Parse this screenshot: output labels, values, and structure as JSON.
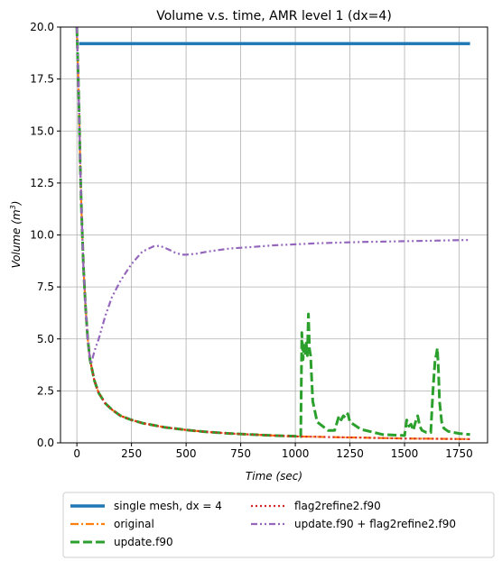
{
  "chart_data": {
    "type": "line",
    "title": "Volume v.s. time, AMR level 1 (dx=4)",
    "xlabel_main": "Time",
    "xlabel_unit": "(sec)",
    "ylabel_main": "Volume",
    "ylabel_unit_prefix": "(m",
    "ylabel_unit_exp": "3",
    "ylabel_unit_suffix": ")",
    "xlim": [
      -75,
      1880
    ],
    "ylim": [
      0,
      20
    ],
    "xticks": [
      0,
      250,
      500,
      750,
      1000,
      1250,
      1500,
      1750
    ],
    "xtick_labels": [
      "0",
      "250",
      "500",
      "750",
      "1000",
      "1250",
      "1500",
      "1750"
    ],
    "yticks": [
      0,
      2.5,
      5,
      7.5,
      10,
      12.5,
      15,
      17.5,
      20
    ],
    "ytick_labels": [
      "0.0",
      "2.5",
      "5.0",
      "7.5",
      "10.0",
      "12.5",
      "15.0",
      "17.5",
      "20.0"
    ],
    "grid": true,
    "legend_position": "below plot, 2 columns",
    "series": [
      {
        "name": "single mesh, dx = 4",
        "color": "#1f77b4",
        "style": "solid",
        "x": [
          10,
          1800
        ],
        "y": [
          19.2,
          19.2
        ]
      },
      {
        "name": "original",
        "color": "#ff7f0e",
        "style": "dashdot",
        "x": [
          0,
          5,
          10,
          15,
          20,
          30,
          40,
          50,
          60,
          80,
          100,
          130,
          160,
          200,
          250,
          300,
          400,
          500,
          600,
          700,
          800,
          900,
          1000,
          1100,
          1200,
          1300,
          1400,
          1500,
          1600,
          1700,
          1800
        ],
        "y": [
          20,
          18,
          16,
          13.5,
          11.5,
          8.5,
          6.5,
          5.0,
          4.0,
          3.0,
          2.4,
          1.9,
          1.6,
          1.3,
          1.1,
          0.95,
          0.75,
          0.62,
          0.52,
          0.45,
          0.4,
          0.35,
          0.31,
          0.29,
          0.27,
          0.25,
          0.23,
          0.21,
          0.2,
          0.19,
          0.18
        ]
      },
      {
        "name": "update.f90",
        "color": "#2ca02c",
        "style": "dashed",
        "x": [
          0,
          5,
          10,
          15,
          20,
          30,
          40,
          50,
          60,
          80,
          100,
          130,
          160,
          200,
          250,
          300,
          400,
          500,
          600,
          700,
          800,
          900,
          1000,
          1025,
          1030,
          1035,
          1040,
          1045,
          1050,
          1055,
          1060,
          1065,
          1070,
          1080,
          1100,
          1150,
          1180,
          1200,
          1210,
          1220,
          1230,
          1240,
          1250,
          1300,
          1400,
          1500,
          1510,
          1520,
          1530,
          1540,
          1550,
          1560,
          1570,
          1580,
          1600,
          1620,
          1630,
          1640,
          1645,
          1650,
          1655,
          1660,
          1670,
          1680,
          1700,
          1750,
          1800
        ],
        "y": [
          20,
          18,
          16,
          13.5,
          11.5,
          8.5,
          6.5,
          5.0,
          4.0,
          3.0,
          2.4,
          1.9,
          1.6,
          1.3,
          1.1,
          0.95,
          0.75,
          0.62,
          0.52,
          0.45,
          0.4,
          0.35,
          0.32,
          0.3,
          5.3,
          4.0,
          4.7,
          4.3,
          4.8,
          4.2,
          6.2,
          4.5,
          4.2,
          2.0,
          1.0,
          0.6,
          0.6,
          1.3,
          1.1,
          1.3,
          1.2,
          1.4,
          1.0,
          0.65,
          0.4,
          0.35,
          1.1,
          0.8,
          0.9,
          0.6,
          1.0,
          1.3,
          0.8,
          0.6,
          0.5,
          0.5,
          2.5,
          4.0,
          4.2,
          4.55,
          3.5,
          2.0,
          1.0,
          0.7,
          0.55,
          0.45,
          0.4
        ]
      },
      {
        "name": "flag2refine2.f90",
        "color": "#d62728",
        "style": "dotted",
        "x": [
          0,
          5,
          10,
          15,
          20,
          30,
          40,
          50,
          60,
          80,
          100,
          130,
          160,
          200,
          250,
          300,
          400,
          500,
          600,
          700,
          800,
          900,
          1000,
          1100,
          1200,
          1300,
          1400,
          1500,
          1600,
          1700,
          1800
        ],
        "y": [
          20,
          18,
          16,
          13.5,
          11.5,
          8.5,
          6.5,
          5.0,
          4.0,
          3.0,
          2.4,
          1.9,
          1.6,
          1.3,
          1.1,
          0.95,
          0.75,
          0.62,
          0.52,
          0.45,
          0.4,
          0.35,
          0.31,
          0.29,
          0.27,
          0.25,
          0.23,
          0.21,
          0.2,
          0.19,
          0.18
        ]
      },
      {
        "name": "update.f90 + flag2refine2.f90",
        "color": "#9467bd",
        "style": "dashdotdot",
        "x": [
          0,
          5,
          10,
          15,
          20,
          30,
          40,
          50,
          60,
          65,
          70,
          80,
          100,
          130,
          160,
          200,
          250,
          300,
          350,
          380,
          420,
          450,
          480,
          500,
          550,
          600,
          700,
          800,
          900,
          1000,
          1100,
          1200,
          1300,
          1400,
          1500,
          1600,
          1700,
          1800
        ],
        "y": [
          20,
          18,
          16,
          13.5,
          11.5,
          8.5,
          6.5,
          5.0,
          4.0,
          3.8,
          4.0,
          4.4,
          5.0,
          6.1,
          7.0,
          7.8,
          8.6,
          9.2,
          9.45,
          9.48,
          9.3,
          9.15,
          9.05,
          9.05,
          9.1,
          9.2,
          9.35,
          9.42,
          9.5,
          9.55,
          9.6,
          9.63,
          9.66,
          9.68,
          9.7,
          9.72,
          9.74,
          9.76
        ]
      }
    ]
  }
}
